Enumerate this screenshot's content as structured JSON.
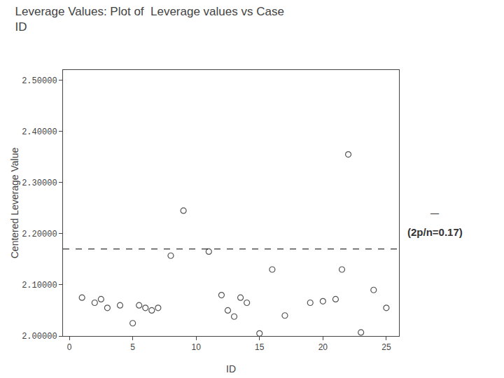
{
  "chart_data": {
    "type": "scatter",
    "title": "Leverage Values: Plot of  Leverage values vs Case\nID",
    "x_label": "ID",
    "y_label": "Centered Leverage Value",
    "x": [
      1,
      2,
      2.5,
      3,
      4,
      5,
      5.5,
      6,
      6.5,
      7,
      8,
      9,
      11,
      12,
      12.5,
      13,
      13.5,
      14,
      15,
      16,
      17,
      19,
      20,
      21,
      21.5,
      22,
      23,
      24,
      25
    ],
    "values": [
      0.075,
      0.065,
      0.072,
      0.055,
      0.06,
      0.025,
      0.06,
      0.055,
      0.05,
      0.055,
      0.157,
      0.245,
      0.165,
      0.08,
      0.05,
      0.038,
      0.075,
      0.065,
      0.005,
      0.13,
      0.04,
      0.065,
      0.068,
      0.072,
      0.13,
      0.355,
      0.007,
      0.09,
      0.055
    ],
    "color": "#555555",
    "marker": "open circle",
    "xlim": [
      -0.5,
      26
    ],
    "xticks": [
      0,
      5,
      10,
      15,
      20,
      25
    ],
    "ylim": [
      0,
      0.52
    ],
    "yticks": [
      {
        "value": 0,
        "label": "2.00000"
      },
      {
        "value": 0.1,
        "label": "2.10000"
      },
      {
        "value": 0.2,
        "label": "2.20000"
      },
      {
        "value": 0.3,
        "label": "2.30000"
      },
      {
        "value": 0.4,
        "label": "2.40000"
      },
      {
        "value": 0.5,
        "label": "2.50000"
      }
    ],
    "reference_lines": [
      {
        "y": 0.17,
        "label": "(2p/n=0.17)",
        "color": "#000000",
        "line_style": "dashed"
      }
    ],
    "annotations": [
      {
        "text": "—",
        "y": 0.17
      }
    ],
    "grid": false
  }
}
